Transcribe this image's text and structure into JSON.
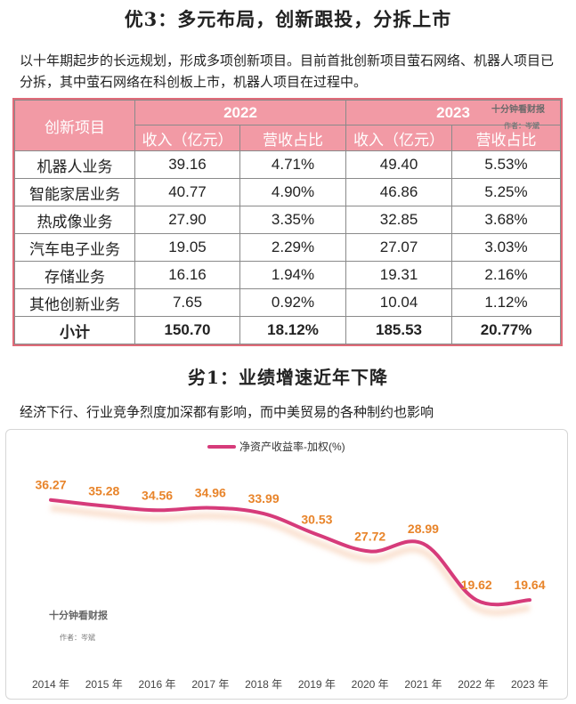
{
  "section1": {
    "title": "优3：多元布局，创新跟投，分拆上市",
    "paragraph": "以十年期起步的长远规划，形成多项创新项目。目前首批创新项目萤石网络、机器人项目已分拆，其中萤石网络在科创板上市，机器人项目在过程中。"
  },
  "table": {
    "corner_label": "创新项目",
    "years": [
      "2022",
      "2023"
    ],
    "sub_headers": [
      "收入（亿元）",
      "营收占比",
      "收入（亿元）",
      "营收占比"
    ],
    "rows": [
      {
        "name": "机器人业务",
        "rev2022": "39.16",
        "pct2022": "4.71%",
        "rev2023": "49.40",
        "pct2023": "5.53%"
      },
      {
        "name": "智能家居业务",
        "rev2022": "40.77",
        "pct2022": "4.90%",
        "rev2023": "46.86",
        "pct2023": "5.25%"
      },
      {
        "name": "热成像业务",
        "rev2022": "27.90",
        "pct2022": "3.35%",
        "rev2023": "32.85",
        "pct2023": "3.68%"
      },
      {
        "name": "汽车电子业务",
        "rev2022": "19.05",
        "pct2022": "2.29%",
        "rev2023": "27.07",
        "pct2023": "3.03%"
      },
      {
        "name": "存储业务",
        "rev2022": "16.16",
        "pct2022": "1.94%",
        "rev2023": "19.31",
        "pct2023": "2.16%"
      },
      {
        "name": "其他创新业务",
        "rev2022": "7.65",
        "pct2022": "0.92%",
        "rev2023": "10.04",
        "pct2023": "1.12%"
      }
    ],
    "total": {
      "name": "小计",
      "rev2022": "150.70",
      "pct2022": "18.12%",
      "rev2023": "185.53",
      "pct2023": "20.77%"
    },
    "watermark_brand": "十分钟看财报",
    "watermark_author": "作者：岑斌"
  },
  "section2": {
    "title": "劣1：业绩增速近年下降",
    "paragraph": "经济下行、行业竞争烈度加深都有影响，而中美贸易的各种制约也影响"
  },
  "colors": {
    "accent": "#d63b7a",
    "label_orange": "#e8842a",
    "header_pink": "#f29aa5"
  },
  "chart_data": {
    "type": "line",
    "title": "",
    "legend": "净资产收益率-加权(%)",
    "legend_position": "top-center",
    "categories": [
      "2014 年",
      "2015 年",
      "2016 年",
      "2017 年",
      "2018 年",
      "2019 年",
      "2020 年",
      "2021 年",
      "2022 年",
      "2023 年"
    ],
    "values": [
      36.27,
      35.28,
      34.56,
      34.96,
      33.99,
      30.53,
      27.72,
      28.99,
      19.62,
      19.64
    ],
    "labels": [
      "36.27",
      "35.28",
      "34.56",
      "34.96",
      "33.99",
      "30.53",
      "27.72",
      "28.99",
      "19.62",
      "19.64"
    ],
    "ylim": [
      5,
      42
    ],
    "grid": false,
    "watermark_brand": "十分钟看财报",
    "watermark_author": "作者：岑斌"
  }
}
